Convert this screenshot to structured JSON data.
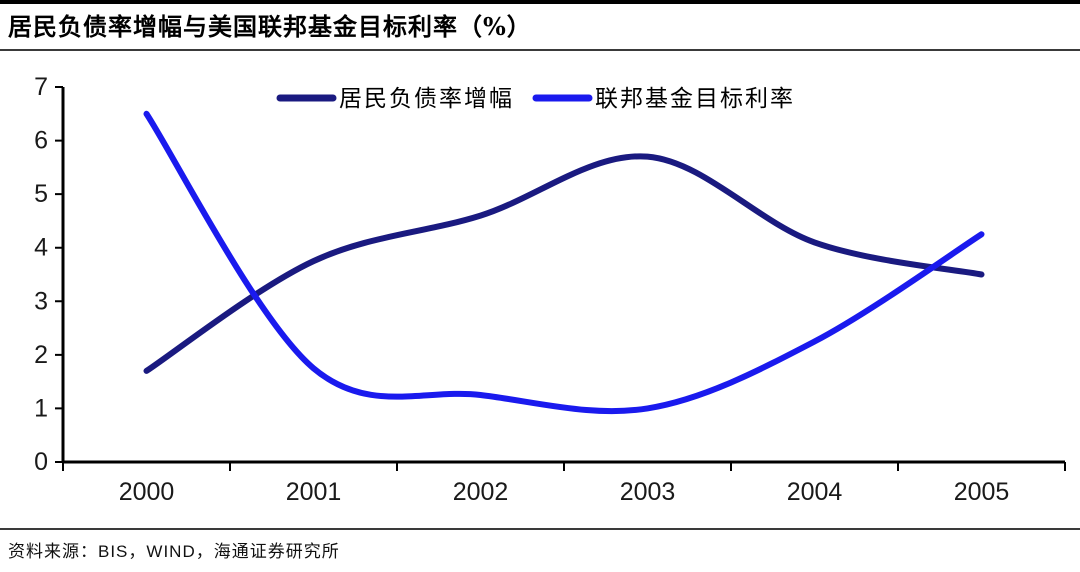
{
  "page": {
    "title": "居民负债率增幅与美国联邦基金目标利率（%）",
    "source": "资料来源：BIS，WIND，海通证券研究所"
  },
  "chart_data": {
    "type": "line",
    "title": "居民负债率增幅与美国联邦基金目标利率（%）",
    "categories": [
      "2000",
      "2001",
      "2002",
      "2003",
      "2004",
      "2005"
    ],
    "series": [
      {
        "name": "居民负债率增幅",
        "color": "#1a1a80",
        "values": [
          1.7,
          3.75,
          4.6,
          5.7,
          4.1,
          3.5
        ]
      },
      {
        "name": "联邦基金目标利率",
        "color": "#1a1aee",
        "values": [
          6.5,
          1.75,
          1.25,
          1.0,
          2.25,
          4.25
        ]
      }
    ],
    "xlabel": "",
    "ylabel": "",
    "ylim": [
      0,
      7
    ],
    "y_ticks": [
      "0",
      "1",
      "2",
      "3",
      "4",
      "5",
      "6",
      "7"
    ],
    "grid": false,
    "legend_position": "top-center",
    "smoothed": true
  }
}
